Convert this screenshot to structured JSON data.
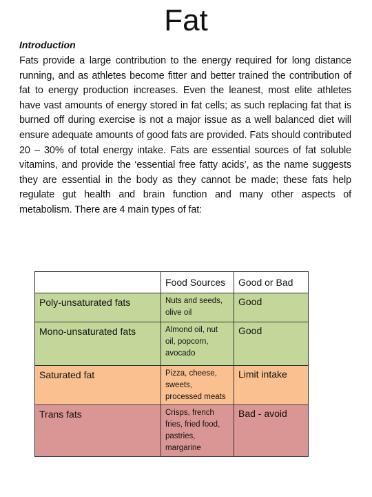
{
  "title": "Fat",
  "intro_heading": "Introduction",
  "intro_text": "Fats provide a large contribution to the energy required for long distance running, and as athletes become fitter and better trained the contribution of fat to energy production increases. Even the leanest, most elite athletes have vast amounts of energy stored in fat cells; as such replacing fat that is burned off during exercise is not a major issue as a well balanced diet will ensure adequate amounts of good fats are provided. Fats should contributed 20 – 30% of total energy intake. Fats are essential sources of fat soluble vitamins, and provide the ‘essential free fatty acids’, as the name suggests they are essential in the body as they cannot be made; these fats help regulate gut health and brain function and many other aspects of metabolism. There are 4 main types of fat:",
  "table": {
    "headers": [
      "",
      "Food Sources",
      "Good or Bad"
    ],
    "rows": [
      {
        "type": "Poly-unsaturated fats",
        "sources": "Nuts and seeds, olive oil",
        "rating": "Good",
        "color": "#c4d79b"
      },
      {
        "type": "Mono-unsaturated fats",
        "sources": "Almond oil, nut oil, popcorn, avocado",
        "rating": "Good",
        "color": "#c4d79b"
      },
      {
        "type": "Saturated fat",
        "sources": "Pizza, cheese, sweets, processed meats",
        "rating": "Limit intake",
        "color": "#fac090"
      },
      {
        "type": "Trans fats",
        "sources": "Crisps, french fries, fried food, pastries, margarine",
        "rating": "Bad - avoid",
        "color": "#da9694"
      }
    ]
  }
}
